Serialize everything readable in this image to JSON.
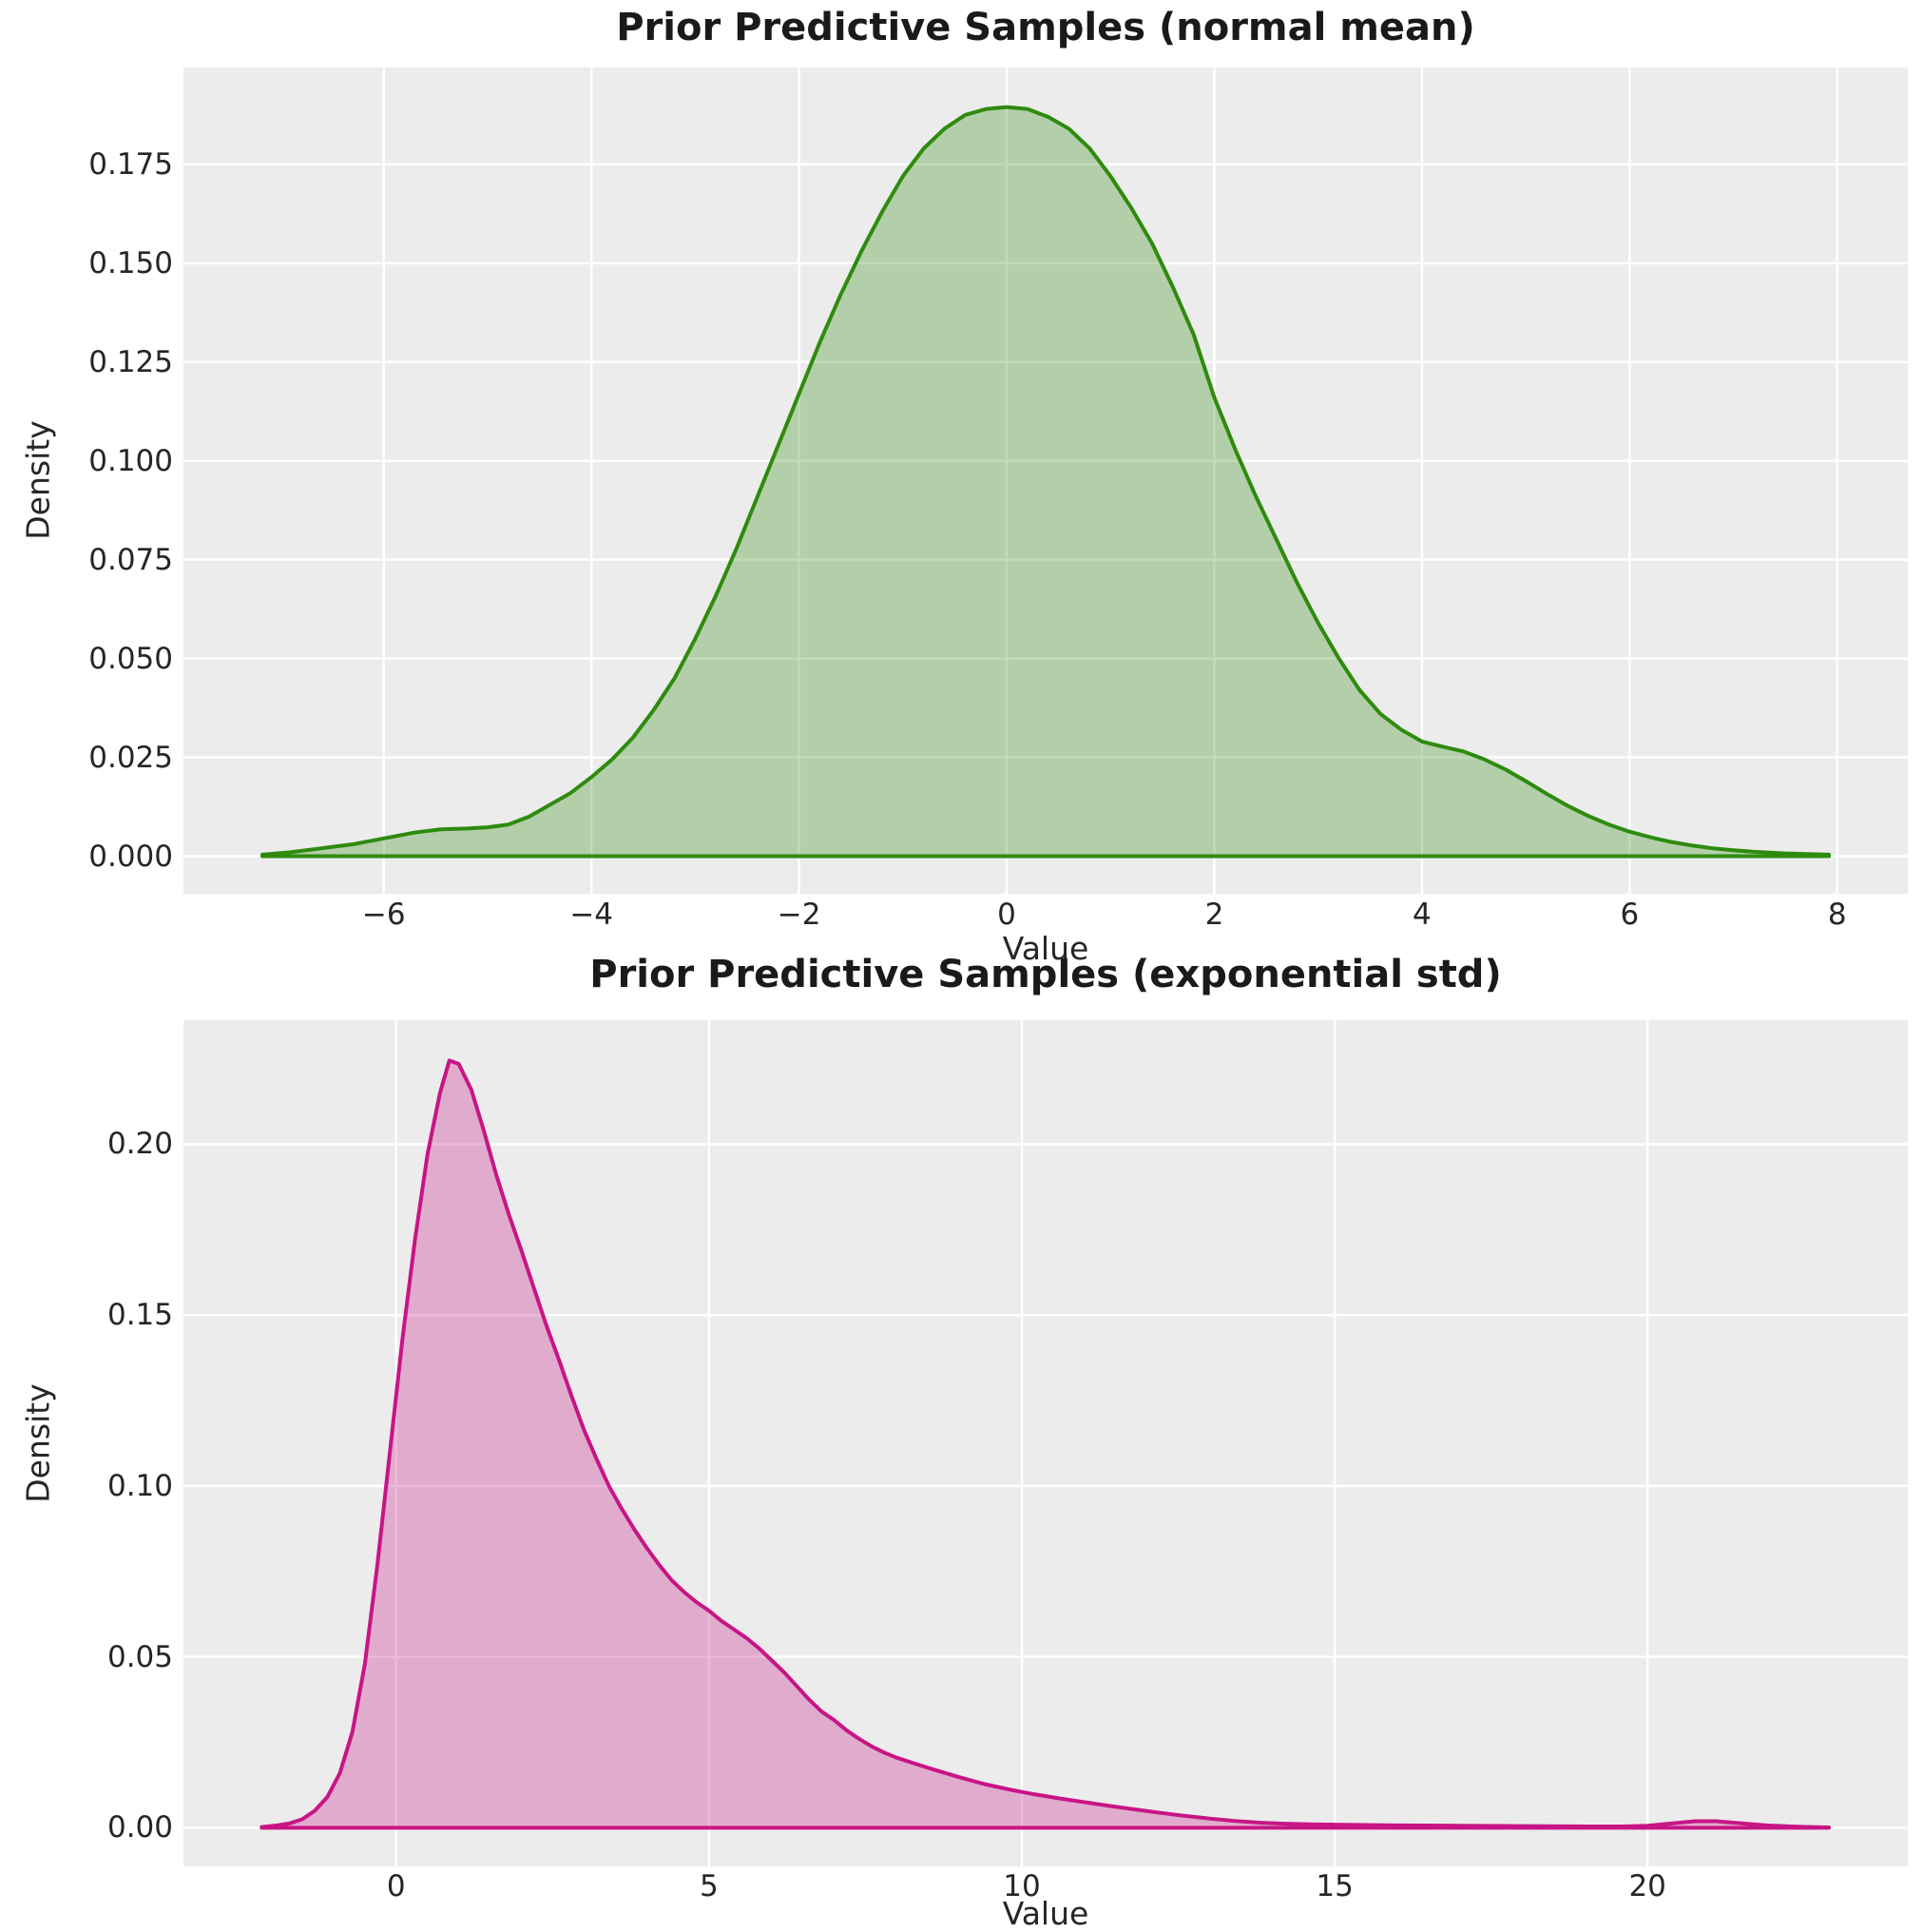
{
  "figure": {
    "background": "#ffffff",
    "axes_background": "#ECECEC",
    "grid_color": "#ffffff",
    "text_color": "#262626"
  },
  "chart_data": [
    {
      "type": "area",
      "title": "Prior Predictive Samples (normal mean)",
      "xlabel": "Value",
      "ylabel": "Density",
      "line_color": "#2E8B0E",
      "fill_opacity": 0.3,
      "grid": true,
      "legend": "none",
      "xlim": [
        -7.93,
        8.68
      ],
      "ylim": [
        -0.0095,
        0.1995
      ],
      "xtick_values": [
        -6,
        -4,
        -2,
        0,
        2,
        4,
        6,
        8
      ],
      "xtick_labels": [
        "−6",
        "−4",
        "−2",
        "0",
        "2",
        "4",
        "6",
        "8"
      ],
      "ytick_values": [
        0.0,
        0.025,
        0.05,
        0.075,
        0.1,
        0.125,
        0.15,
        0.175
      ],
      "ytick_labels": [
        "0.000",
        "0.025",
        "0.050",
        "0.075",
        "0.100",
        "0.125",
        "0.150",
        "0.175"
      ],
      "series": [
        {
          "name": "kde-normal-mean",
          "x": [
            -7.17,
            -6.9,
            -6.6,
            -6.3,
            -6.0,
            -5.7,
            -5.45,
            -5.2,
            -5.0,
            -4.8,
            -4.6,
            -4.4,
            -4.2,
            -4.0,
            -3.8,
            -3.6,
            -3.4,
            -3.2,
            -3.0,
            -2.8,
            -2.6,
            -2.4,
            -2.2,
            -2.0,
            -1.8,
            -1.6,
            -1.4,
            -1.2,
            -1.0,
            -0.8,
            -0.6,
            -0.4,
            -0.2,
            0.0,
            0.2,
            0.4,
            0.6,
            0.8,
            1.0,
            1.2,
            1.4,
            1.6,
            1.8,
            2.0,
            2.2,
            2.4,
            2.6,
            2.8,
            3.0,
            3.2,
            3.4,
            3.6,
            3.8,
            4.0,
            4.2,
            4.4,
            4.6,
            4.8,
            5.0,
            5.2,
            5.4,
            5.6,
            5.8,
            6.0,
            6.2,
            6.4,
            6.6,
            6.8,
            7.0,
            7.2,
            7.5,
            7.92
          ],
          "y": [
            0.0004,
            0.001,
            0.002,
            0.003,
            0.0045,
            0.006,
            0.0068,
            0.007,
            0.0073,
            0.008,
            0.01,
            0.013,
            0.016,
            0.02,
            0.0245,
            0.03,
            0.037,
            0.045,
            0.055,
            0.066,
            0.078,
            0.091,
            0.104,
            0.117,
            0.13,
            0.142,
            0.153,
            0.163,
            0.172,
            0.179,
            0.184,
            0.1875,
            0.189,
            0.1895,
            0.189,
            0.187,
            0.184,
            0.179,
            0.172,
            0.164,
            0.155,
            0.144,
            0.132,
            0.116,
            0.103,
            0.091,
            0.08,
            0.069,
            0.059,
            0.05,
            0.042,
            0.036,
            0.032,
            0.029,
            0.0277,
            0.0265,
            0.0245,
            0.022,
            0.019,
            0.0158,
            0.0128,
            0.0102,
            0.008,
            0.0062,
            0.0048,
            0.0036,
            0.0027,
            0.002,
            0.0015,
            0.0011,
            0.0007,
            0.0004
          ]
        }
      ]
    },
    {
      "type": "area",
      "title": "Prior Predictive Samples (exponential std)",
      "xlabel": "Value",
      "ylabel": "Density",
      "line_color": "#C71585",
      "fill_opacity": 0.3,
      "grid": true,
      "legend": "none",
      "xlim": [
        -3.4,
        24.16
      ],
      "ylim": [
        -0.0113,
        0.2363
      ],
      "xtick_values": [
        0,
        5,
        10,
        15,
        20
      ],
      "xtick_labels": [
        "0",
        "5",
        "10",
        "15",
        "20"
      ],
      "ytick_values": [
        0.0,
        0.05,
        0.1,
        0.15,
        0.2
      ],
      "ytick_labels": [
        "0.00",
        "0.05",
        "0.10",
        "0.15",
        "0.20"
      ],
      "series": [
        {
          "name": "kde-exponential-std",
          "x": [
            -2.15,
            -1.9,
            -1.7,
            -1.5,
            -1.3,
            -1.1,
            -0.9,
            -0.7,
            -0.5,
            -0.3,
            -0.1,
            0.1,
            0.3,
            0.5,
            0.7,
            0.85,
            1.0,
            1.2,
            1.4,
            1.6,
            1.8,
            2.0,
            2.2,
            2.4,
            2.6,
            2.8,
            3.0,
            3.2,
            3.4,
            3.6,
            3.8,
            4.0,
            4.2,
            4.4,
            4.6,
            4.8,
            5.0,
            5.2,
            5.4,
            5.6,
            5.8,
            6.0,
            6.2,
            6.4,
            6.6,
            6.8,
            7.0,
            7.2,
            7.4,
            7.6,
            7.8,
            8.0,
            8.3,
            8.6,
            9.0,
            9.4,
            9.8,
            10.2,
            10.6,
            11.0,
            11.4,
            11.8,
            12.2,
            12.6,
            13.0,
            13.4,
            13.8,
            14.2,
            14.6,
            15.0,
            15.5,
            16.0,
            17.0,
            18.0,
            19.0,
            19.6,
            20.0,
            20.4,
            20.75,
            21.1,
            21.5,
            21.9,
            22.4,
            22.9
          ],
          "y": [
            0.0002,
            0.0007,
            0.0013,
            0.0025,
            0.005,
            0.009,
            0.016,
            0.028,
            0.048,
            0.077,
            0.11,
            0.143,
            0.172,
            0.197,
            0.215,
            0.2245,
            0.2235,
            0.216,
            0.204,
            0.191,
            0.1795,
            0.169,
            0.158,
            0.147,
            0.137,
            0.1265,
            0.1165,
            0.108,
            0.1,
            0.0935,
            0.0875,
            0.082,
            0.077,
            0.0725,
            0.069,
            0.066,
            0.0635,
            0.0605,
            0.058,
            0.0555,
            0.0525,
            0.049,
            0.0455,
            0.0415,
            0.0375,
            0.034,
            0.0315,
            0.0285,
            0.026,
            0.0238,
            0.022,
            0.0205,
            0.0187,
            0.017,
            0.0148,
            0.0128,
            0.0112,
            0.0098,
            0.0086,
            0.0075,
            0.0064,
            0.0054,
            0.0044,
            0.0035,
            0.0027,
            0.002,
            0.0015,
            0.0012,
            0.001,
            0.0009,
            0.0008,
            0.0007,
            0.0006,
            0.0005,
            0.0004,
            0.0004,
            0.0006,
            0.0013,
            0.0019,
            0.0019,
            0.0013,
            0.0007,
            0.0003,
            0.0001
          ]
        }
      ]
    }
  ]
}
